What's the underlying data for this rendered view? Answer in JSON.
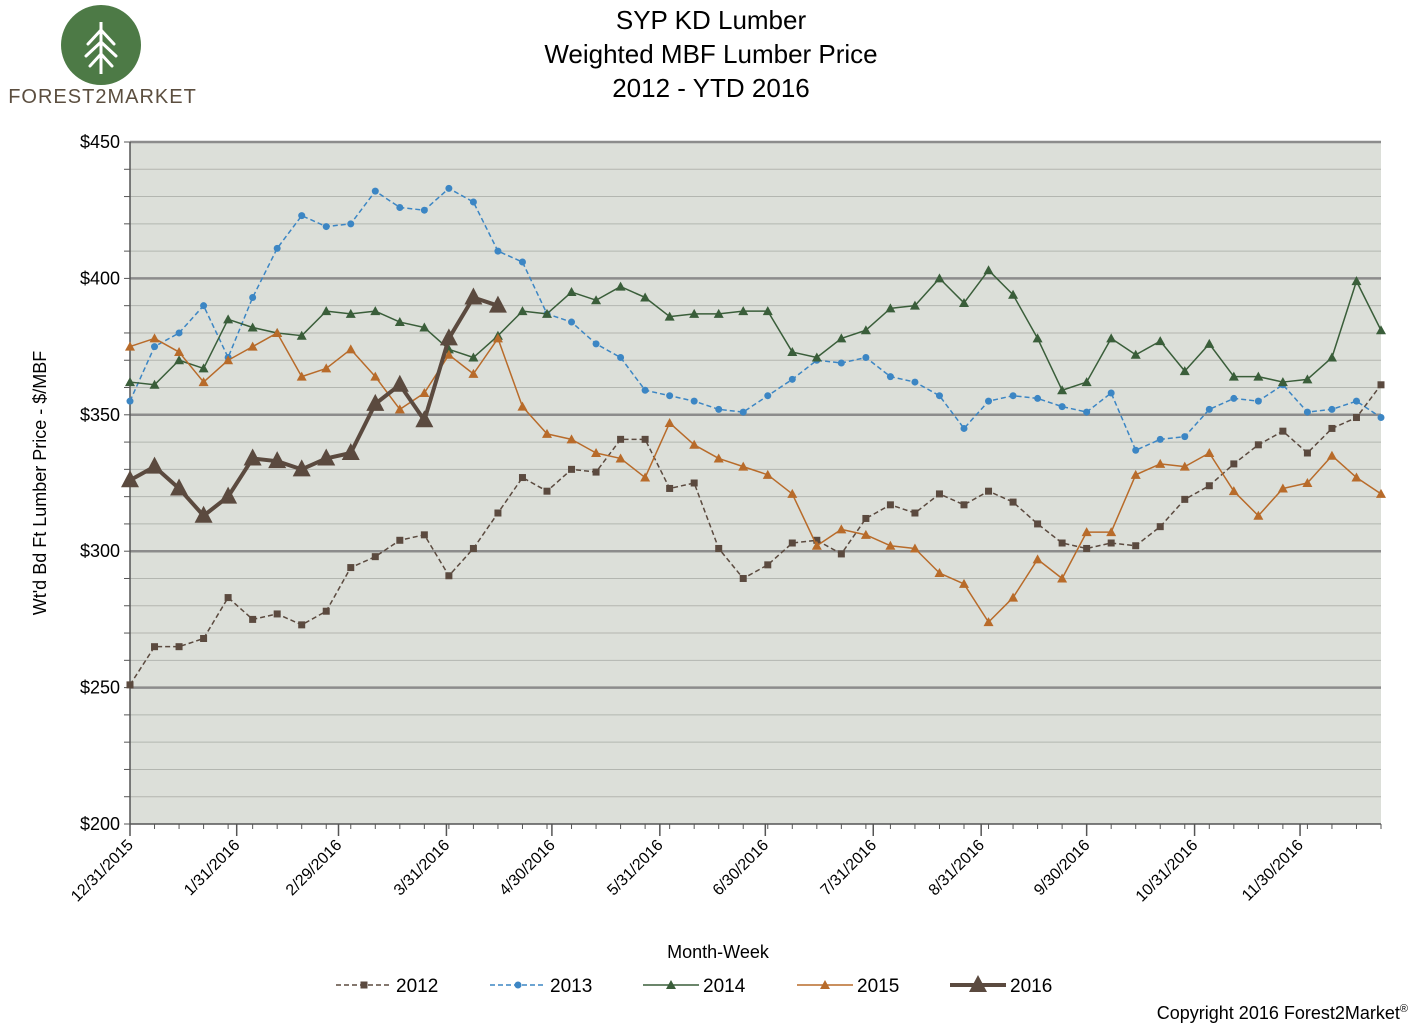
{
  "header": {
    "title_lines": [
      "SYP KD Lumber",
      "Weighted MBF Lumber Price",
      "2012 - YTD 2016"
    ],
    "logo_text": "FOREST2MARKET",
    "logo_colors": {
      "circle": "#4d7a46",
      "tree": "#ffffff"
    }
  },
  "footer": {
    "copyright": "Copyright 2016 Forest2Market",
    "registered_mark": "®"
  },
  "chart_data": {
    "type": "line",
    "ylabel": "Wt'd Bd Ft Lumber  Price - $/MBF",
    "xlabel": "Month-Week",
    "ylim": [
      200,
      450
    ],
    "y_ticks": [
      {
        "value": 200,
        "label": "$200"
      },
      {
        "value": 250,
        "label": "$250"
      },
      {
        "value": 300,
        "label": "$300"
      },
      {
        "value": 350,
        "label": "$350"
      },
      {
        "value": 400,
        "label": "$400"
      },
      {
        "value": 450,
        "label": "$450"
      }
    ],
    "x_tick_labels": [
      "12/31/2015",
      "1/31/2016",
      "2/29/2016",
      "3/31/2016",
      "4/30/2016",
      "5/31/2016",
      "6/30/2016",
      "7/31/2016",
      "8/31/2016",
      "9/30/2016",
      "10/31/2016",
      "11/30/2016"
    ],
    "x_tick_weeks": [
      0,
      4.35,
      8.5,
      12.9,
      17.2,
      21.6,
      25.9,
      30.3,
      34.7,
      39.0,
      43.4,
      47.7
    ],
    "week_count": 52,
    "grid": {
      "major_every": 50,
      "minor_every": 10
    },
    "colors": {
      "plot_bg": "#dcdfd9",
      "major_grid": "#8c8c8c",
      "minor_grid": "#b3b6b0"
    },
    "legend_position": "bottom",
    "series": [
      {
        "name": "2012",
        "color": "#5b4a3f",
        "dash": "dashed",
        "marker": "square",
        "values": [
          251,
          265,
          265,
          268,
          283,
          275,
          277,
          273,
          278,
          294,
          298,
          304,
          306,
          291,
          301,
          314,
          327,
          322,
          330,
          329,
          341,
          341,
          323,
          325,
          301,
          290,
          295,
          303,
          304,
          299,
          312,
          317,
          314,
          321,
          317,
          322,
          318,
          310,
          303,
          301,
          303,
          302,
          309,
          319,
          324,
          332,
          339,
          344,
          336,
          345,
          349,
          361
        ]
      },
      {
        "name": "2013",
        "color": "#3c86c4",
        "dash": "dashed",
        "marker": "circle",
        "values": [
          355,
          375,
          380,
          390,
          371,
          393,
          411,
          423,
          419,
          420,
          432,
          426,
          425,
          433,
          428,
          410,
          406,
          387,
          384,
          376,
          371,
          359,
          357,
          355,
          352,
          351,
          357,
          363,
          370,
          369,
          371,
          364,
          362,
          357,
          345,
          355,
          357,
          356,
          353,
          351,
          358,
          337,
          341,
          342,
          352,
          356,
          355,
          361,
          351,
          352,
          355,
          349
        ]
      },
      {
        "name": "2014",
        "color": "#3a5e3a",
        "dash": "solid",
        "marker": "triangle-small",
        "values": [
          362,
          361,
          370,
          367,
          385,
          382,
          380,
          379,
          388,
          387,
          388,
          384,
          382,
          374,
          371,
          379,
          388,
          387,
          395,
          392,
          397,
          393,
          386,
          387,
          387,
          388,
          388,
          373,
          371,
          378,
          381,
          389,
          390,
          400,
          391,
          403,
          394,
          378,
          359,
          362,
          378,
          372,
          377,
          366,
          376,
          364,
          364,
          362,
          363,
          371,
          399,
          381
        ]
      },
      {
        "name": "2015",
        "color": "#b86b2a",
        "dash": "solid",
        "marker": "triangle-small",
        "values": [
          375,
          378,
          373,
          362,
          370,
          375,
          380,
          364,
          367,
          374,
          364,
          352,
          358,
          372,
          365,
          378,
          353,
          343,
          341,
          336,
          334,
          327,
          347,
          339,
          334,
          331,
          328,
          321,
          302,
          308,
          306,
          302,
          301,
          292,
          288,
          274,
          283,
          297,
          290,
          307,
          307,
          328,
          332,
          331,
          336,
          322,
          313,
          323,
          325,
          335,
          327,
          321
        ]
      },
      {
        "name": "2016",
        "color": "#5b4a3f",
        "dash": "solid",
        "marker": "triangle-large",
        "values": [
          326,
          331,
          323,
          313,
          320,
          334,
          333,
          330,
          334,
          336,
          354,
          361,
          348,
          378,
          393,
          390
        ]
      }
    ]
  }
}
